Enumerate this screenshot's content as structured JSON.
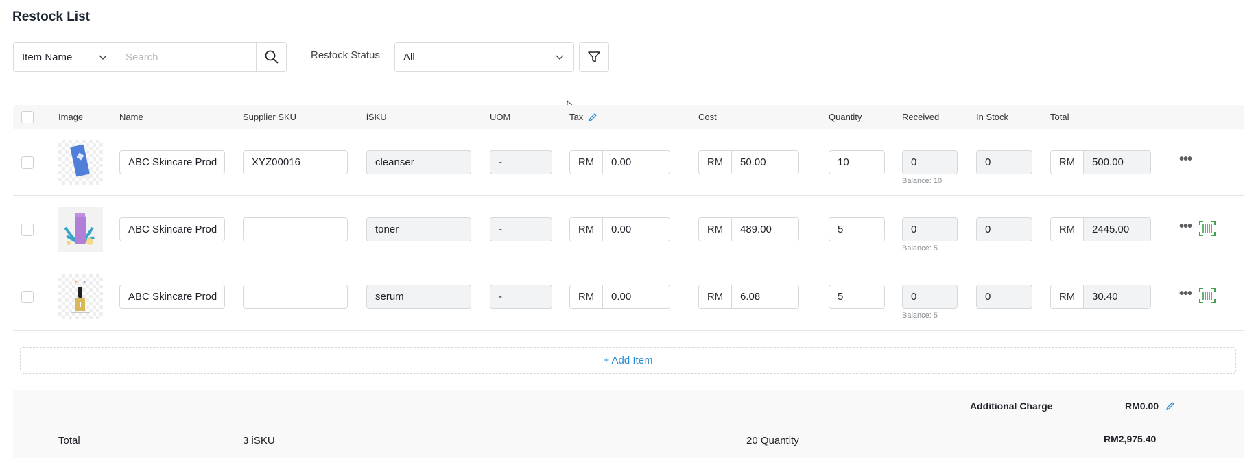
{
  "page": {
    "title": "Restock List"
  },
  "filters": {
    "search_field_select": "Item Name",
    "search_placeholder": "Search",
    "restock_status_label": "Restock Status",
    "restock_status_value": "All"
  },
  "table": {
    "headers": {
      "image": "Image",
      "name": "Name",
      "supplier_sku": "Supplier SKU",
      "isku": "iSKU",
      "uom": "UOM",
      "tax": "Tax",
      "cost": "Cost",
      "quantity": "Quantity",
      "received": "Received",
      "in_stock": "In Stock",
      "total": "Total"
    },
    "currency": "RM",
    "rows": [
      {
        "name": "ABC Skincare Prod",
        "supplier_sku": "XYZ00016",
        "isku": "cleanser",
        "uom": "-",
        "tax": "0.00",
        "cost": "50.00",
        "quantity": "10",
        "received": "0",
        "balance": "Balance: 10",
        "in_stock": "0",
        "total": "500.00",
        "image": "blue-tube",
        "has_barcode": false
      },
      {
        "name": "ABC Skincare Prod",
        "supplier_sku": "",
        "isku": "toner",
        "uom": "-",
        "tax": "0.00",
        "cost": "489.00",
        "quantity": "5",
        "received": "0",
        "balance": "Balance: 5",
        "in_stock": "0",
        "total": "2445.00",
        "image": "purple-bottle",
        "has_barcode": true
      },
      {
        "name": "ABC Skincare Prod",
        "supplier_sku": "",
        "isku": "serum",
        "uom": "-",
        "tax": "0.00",
        "cost": "6.08",
        "quantity": "5",
        "received": "0",
        "balance": "Balance: 5",
        "in_stock": "0",
        "total": "30.40",
        "image": "serum-dropper",
        "has_barcode": true
      }
    ],
    "add_item_label": "+ Add Item"
  },
  "summary": {
    "additional_charge_label": "Additional Charge",
    "additional_charge_value": "RM0.00",
    "total_label": "Total",
    "isku_count": "3 iSKU",
    "quantity_total": "20 Quantity",
    "grand_total": "RM2,975.40"
  },
  "colors": {
    "accent": "#2b8fd6",
    "barcode": "#3fa34d"
  }
}
